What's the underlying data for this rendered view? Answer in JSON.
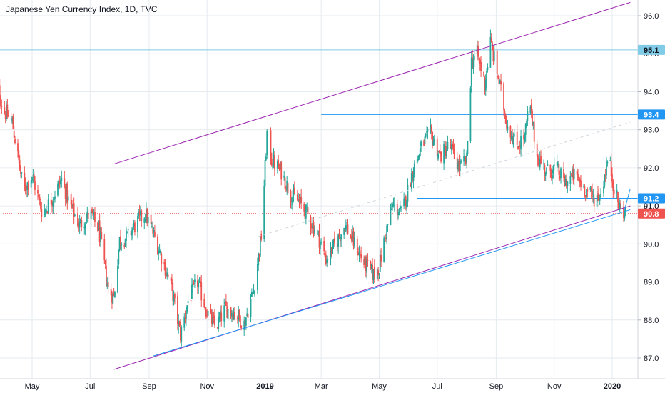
{
  "title": "Japanese Yen Currency Index, 1D, TVC",
  "colors": {
    "up": "#26a69a",
    "down": "#ef5350",
    "channel": "#9c27b0",
    "hline": "#2196f3",
    "hline_light": "#80cbe6",
    "grid": "#e6ebef",
    "current": "#ef5350"
  },
  "chart_data": {
    "type": "candlestick",
    "title": "Japanese Yen Currency Index, 1D, TVC",
    "x_tick_labels": [
      {
        "date": "2018-05-01",
        "label": "May",
        "bold": false
      },
      {
        "date": "2018-07-01",
        "label": "Jul",
        "bold": false
      },
      {
        "date": "2018-09-01",
        "label": "Sep",
        "bold": false
      },
      {
        "date": "2018-11-01",
        "label": "Nov",
        "bold": false
      },
      {
        "date": "2019-01-01",
        "label": "2019",
        "bold": true
      },
      {
        "date": "2019-03-01",
        "label": "Mar",
        "bold": false
      },
      {
        "date": "2019-05-01",
        "label": "May",
        "bold": false
      },
      {
        "date": "2019-07-01",
        "label": "Jul",
        "bold": false
      },
      {
        "date": "2019-09-01",
        "label": "Sep",
        "bold": false
      },
      {
        "date": "2019-11-01",
        "label": "Nov",
        "bold": false
      },
      {
        "date": "2020-01-01",
        "label": "2020",
        "bold": true
      }
    ],
    "y_ticks": [
      87.0,
      88.0,
      89.0,
      90.0,
      91.0,
      92.0,
      93.0,
      94.0,
      95.0,
      96.0
    ],
    "y_tick_labels": [
      "87.0",
      "88.0",
      "89.0",
      "90.0",
      "91.0",
      "92.0",
      "93.0",
      "94.0",
      "95.0",
      "96.0"
    ],
    "ylim": [
      86.5,
      96.4
    ],
    "xlim": [
      "2018-03-20",
      "2020-01-20"
    ],
    "grid": true,
    "price_path": [
      [
        "2018-03-22",
        94.5
      ],
      [
        "2018-04-01",
        93.5
      ],
      [
        "2018-04-10",
        93.2
      ],
      [
        "2018-04-22",
        91.4
      ],
      [
        "2018-05-01",
        91.8
      ],
      [
        "2018-05-12",
        90.8
      ],
      [
        "2018-05-22",
        91.2
      ],
      [
        "2018-06-01",
        91.7
      ],
      [
        "2018-06-10",
        91.0
      ],
      [
        "2018-06-20",
        90.5
      ],
      [
        "2018-07-01",
        90.8
      ],
      [
        "2018-07-10",
        90.4
      ],
      [
        "2018-07-20",
        88.8
      ],
      [
        "2018-07-26",
        88.6
      ],
      [
        "2018-08-01",
        90.1
      ],
      [
        "2018-08-10",
        90.2
      ],
      [
        "2018-08-20",
        90.6
      ],
      [
        "2018-08-28",
        90.8
      ],
      [
        "2018-09-05",
        90.3
      ],
      [
        "2018-09-15",
        89.6
      ],
      [
        "2018-09-25",
        88.8
      ],
      [
        "2018-10-04",
        87.6
      ],
      [
        "2018-10-12",
        88.5
      ],
      [
        "2018-10-22",
        89.0
      ],
      [
        "2018-11-01",
        88.2
      ],
      [
        "2018-11-10",
        87.8
      ],
      [
        "2018-11-20",
        88.3
      ],
      [
        "2018-11-30",
        88.2
      ],
      [
        "2018-12-10",
        87.9
      ],
      [
        "2018-12-20",
        88.8
      ],
      [
        "2018-12-28",
        90.2
      ],
      [
        "2019-01-03",
        92.9
      ],
      [
        "2019-01-08",
        92.2
      ],
      [
        "2019-01-18",
        91.9
      ],
      [
        "2019-01-28",
        91.3
      ],
      [
        "2019-02-06",
        91.1
      ],
      [
        "2019-02-16",
        90.7
      ],
      [
        "2019-02-26",
        90.2
      ],
      [
        "2019-03-06",
        89.6
      ],
      [
        "2019-03-16",
        90.0
      ],
      [
        "2019-03-26",
        90.5
      ],
      [
        "2019-04-05",
        90.0
      ],
      [
        "2019-04-15",
        89.5
      ],
      [
        "2019-04-25",
        89.2
      ],
      [
        "2019-05-01",
        89.4
      ],
      [
        "2019-05-08",
        90.3
      ],
      [
        "2019-05-15",
        91.0
      ],
      [
        "2019-05-25",
        90.8
      ],
      [
        "2019-06-05",
        91.9
      ],
      [
        "2019-06-15",
        92.6
      ],
      [
        "2019-06-24",
        92.9
      ],
      [
        "2019-07-04",
        92.3
      ],
      [
        "2019-07-14",
        92.6
      ],
      [
        "2019-07-24",
        92.0
      ],
      [
        "2019-08-01",
        92.2
      ],
      [
        "2019-08-06",
        94.8
      ],
      [
        "2019-08-12",
        95.0
      ],
      [
        "2019-08-20",
        94.2
      ],
      [
        "2019-08-26",
        95.3
      ],
      [
        "2019-09-03",
        94.4
      ],
      [
        "2019-09-12",
        93.2
      ],
      [
        "2019-09-22",
        92.6
      ],
      [
        "2019-10-01",
        92.8
      ],
      [
        "2019-10-06",
        93.7
      ],
      [
        "2019-10-14",
        92.3
      ],
      [
        "2019-10-24",
        91.9
      ],
      [
        "2019-11-03",
        92.0
      ],
      [
        "2019-11-12",
        91.6
      ],
      [
        "2019-11-22",
        91.8
      ],
      [
        "2019-12-02",
        91.5
      ],
      [
        "2019-12-12",
        91.2
      ],
      [
        "2019-12-20",
        91.3
      ],
      [
        "2019-12-28",
        92.3
      ],
      [
        "2020-01-02",
        91.6
      ],
      [
        "2020-01-08",
        91.0
      ],
      [
        "2020-01-15",
        90.8
      ]
    ],
    "drawings": [
      {
        "kind": "trend",
        "name": "channel-upper",
        "color": "channel",
        "from": [
          "2018-07-26",
          92.1
        ],
        "to": [
          "2020-01-20",
          96.35
        ]
      },
      {
        "kind": "trend",
        "name": "channel-lower",
        "color": "channel",
        "from": [
          "2018-07-26",
          86.7
        ],
        "to": [
          "2020-01-20",
          91.0
        ]
      },
      {
        "kind": "trend",
        "name": "support-line",
        "color": "hline",
        "from": [
          "2018-09-05",
          87.05
        ],
        "to": [
          "2020-01-20",
          90.9
        ]
      },
      {
        "kind": "trend",
        "name": "breakdown-line",
        "color": "hline",
        "from": [
          "2020-01-14",
          90.9
        ],
        "to": [
          "2020-01-20",
          91.45
        ]
      },
      {
        "kind": "dashed",
        "name": "channel-midline",
        "color": "#cfd4d9",
        "from": [
          "2018-12-25",
          90.2
        ],
        "to": [
          "2020-01-20",
          93.2
        ]
      },
      {
        "kind": "hline",
        "name": "resistance-95-1",
        "color": "hline_light",
        "value": 95.1,
        "from": "2018-03-20"
      },
      {
        "kind": "hline",
        "name": "resistance-93-4",
        "color": "hline",
        "value": 93.4,
        "from": "2019-03-01"
      },
      {
        "kind": "hline",
        "name": "support-91-2",
        "color": "hline",
        "value": 91.2,
        "from": "2019-06-10"
      },
      {
        "kind": "hline",
        "name": "current-price-line",
        "color": "current",
        "value": 90.8,
        "from": "2018-03-20",
        "dotted": true
      }
    ],
    "price_tags": [
      {
        "value": 95.1,
        "label": "95.1",
        "bg": "#80cbe6",
        "fg": "#131722"
      },
      {
        "value": 93.4,
        "label": "93.4",
        "bg": "#2196f3",
        "fg": "#ffffff"
      },
      {
        "value": 91.2,
        "label": "91.2",
        "bg": "#2196f3",
        "fg": "#ffffff"
      },
      {
        "value": 91.0,
        "label": "91.0",
        "bg": "",
        "fg": "#131722"
      },
      {
        "value": 90.8,
        "label": "90.8",
        "bg": "#ef5350",
        "fg": "#ffffff"
      }
    ]
  }
}
